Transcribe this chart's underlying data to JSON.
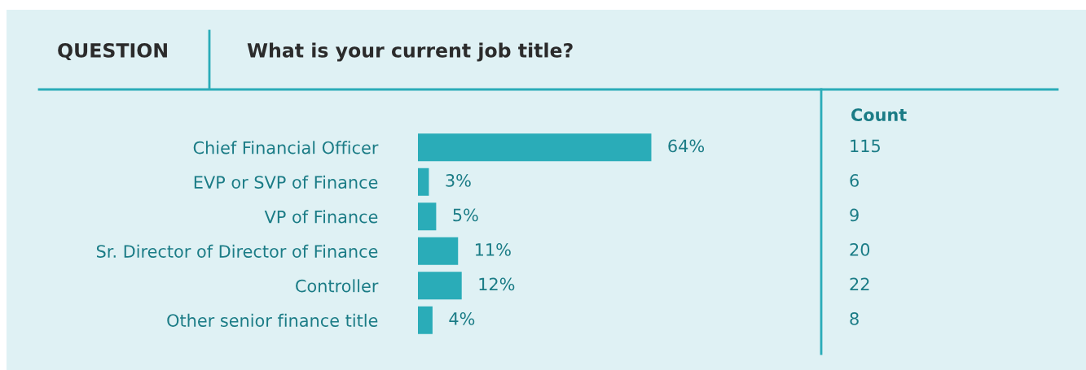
{
  "chart_data": {
    "type": "bar",
    "orientation": "horizontal",
    "title": "What is your current job title?",
    "categories": [
      "Chief Financial Officer",
      "EVP or SVP of Finance",
      "VP of Finance",
      "Sr. Director of Director of Finance",
      "Controller",
      "Other senior finance title"
    ],
    "values": [
      64,
      3,
      5,
      11,
      12,
      4
    ],
    "value_labels": [
      "64%",
      "3%",
      "5%",
      "11%",
      "12%",
      "4%"
    ],
    "color": "#2aacb8",
    "annotations": [
      "QUESTION",
      "Count",
      "115",
      "6",
      "9",
      "20",
      "22",
      "8"
    ],
    "grid": false,
    "legend": false
  }
}
